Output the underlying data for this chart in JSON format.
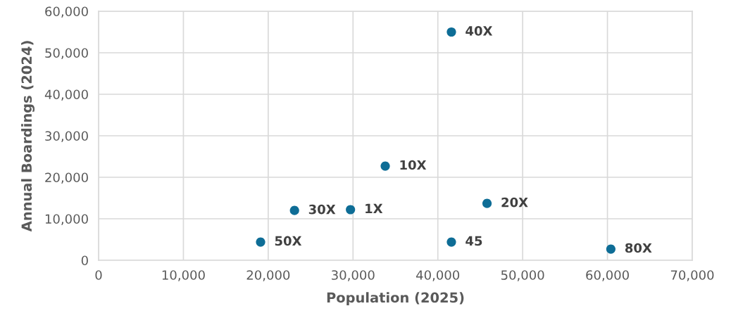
{
  "chart_data": {
    "type": "scatter",
    "xlabel": "Population (2025)",
    "ylabel": "Annual Boardings (2024)",
    "x": [
      41600,
      33800,
      23100,
      29700,
      45800,
      19100,
      41600,
      60400
    ],
    "values": [
      55000,
      22700,
      12000,
      12200,
      13700,
      4400,
      4400,
      2700
    ],
    "color": "#0e6d96",
    "marker": "circle",
    "grid": true,
    "xlim": [
      0,
      70000
    ],
    "xticks": [
      {
        "value": 0,
        "label": "0"
      },
      {
        "value": 10000,
        "label": "10,000"
      },
      {
        "value": 20000,
        "label": "20,000"
      },
      {
        "value": 30000,
        "label": "30,000"
      },
      {
        "value": 40000,
        "label": "40,000"
      },
      {
        "value": 50000,
        "label": "50,000"
      },
      {
        "value": 60000,
        "label": "60,000"
      },
      {
        "value": 70000,
        "label": "70,000"
      }
    ],
    "ylim": [
      0,
      60000
    ],
    "yticks": [
      {
        "value": 0,
        "label": "0"
      },
      {
        "value": 10000,
        "label": "10,000"
      },
      {
        "value": 20000,
        "label": "20,000"
      },
      {
        "value": 30000,
        "label": "30,000"
      },
      {
        "value": 40000,
        "label": "40,000"
      },
      {
        "value": 50000,
        "label": "50,000"
      },
      {
        "value": 60000,
        "label": "60,000"
      }
    ],
    "annotations": [
      {
        "text": "40X",
        "x": 41600,
        "y": 55000
      },
      {
        "text": "10X",
        "x": 33800,
        "y": 22700
      },
      {
        "text": "30X",
        "x": 23100,
        "y": 12000
      },
      {
        "text": "1X",
        "x": 29700,
        "y": 12200
      },
      {
        "text": "20X",
        "x": 45800,
        "y": 13700
      },
      {
        "text": "50X",
        "x": 19100,
        "y": 4400
      },
      {
        "text": "45",
        "x": 41600,
        "y": 4400
      },
      {
        "text": "80X",
        "x": 60400,
        "y": 2700
      }
    ]
  }
}
